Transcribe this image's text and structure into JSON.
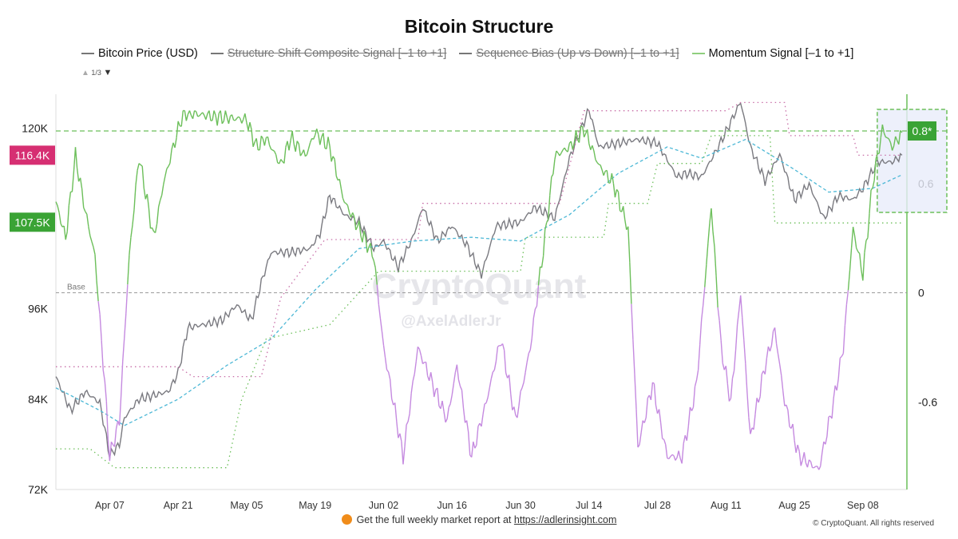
{
  "chart_data": {
    "type": "line",
    "title": "Bitcoin Structure",
    "legend": [
      {
        "name": "Bitcoin Price (USD)",
        "color": "#777777",
        "visible": true
      },
      {
        "name": "Structure Shift Composite Signal [–1 to +1]",
        "color": "#777777",
        "visible": false
      },
      {
        "name": "Sequence Bias (Up vs Down) [–1 to +1]",
        "color": "#777777",
        "visible": false
      },
      {
        "name": "Momentum Signal [–1 to +1]",
        "color": "#6cbf5a",
        "visible": true
      }
    ],
    "legend_page": "1/3",
    "legend_placement": "top",
    "x_ticks": [
      "Apr 07",
      "Apr 21",
      "May 05",
      "May 19",
      "Jun 02",
      "Jun 16",
      "Jun 30",
      "Jul 14",
      "Jul 28",
      "Aug 11",
      "Aug 25",
      "Sep 08"
    ],
    "x_range": [
      "2025-03-27",
      "2025-09-17"
    ],
    "y_left": {
      "ticks": [
        "72K",
        "84K",
        "96K",
        "120K"
      ],
      "tick_values": [
        72000,
        84000,
        96000,
        120000
      ],
      "range": [
        72000,
        124500
      ]
    },
    "y_right": {
      "ticks": [
        "0.6",
        "0",
        "-0.6"
      ],
      "tick_values": [
        0.6,
        0,
        -0.6
      ],
      "range": [
        -1.08,
        1.09
      ]
    },
    "base_label": "Base",
    "markers": {
      "price_current": {
        "label": "116.4K",
        "value": 116400,
        "color": "#d62f72"
      },
      "price_level": {
        "label": "107.5K",
        "value": 107500,
        "color": "#3aa335"
      },
      "momentum_current": {
        "label": "0.8*",
        "value": 0.885,
        "color": "#3aa335"
      }
    },
    "series": [
      {
        "key": "price",
        "axis": "left",
        "color": "#7a7a80",
        "points": [
          [
            "2025-03-27",
            87000
          ],
          [
            "2025-03-30",
            82500
          ],
          [
            "2025-04-02",
            85000
          ],
          [
            "2025-04-05",
            83500
          ],
          [
            "2025-04-07",
            76500
          ],
          [
            "2025-04-09",
            78000
          ],
          [
            "2025-04-10",
            81500
          ],
          [
            "2025-04-13",
            84000
          ],
          [
            "2025-04-16",
            84500
          ],
          [
            "2025-04-19",
            85000
          ],
          [
            "2025-04-21",
            87500
          ],
          [
            "2025-04-23",
            93500
          ],
          [
            "2025-04-27",
            94000
          ],
          [
            "2025-04-30",
            94500
          ],
          [
            "2025-05-03",
            96500
          ],
          [
            "2025-05-06",
            94500
          ],
          [
            "2025-05-08",
            99500
          ],
          [
            "2025-05-10",
            103500
          ],
          [
            "2025-05-14",
            103500
          ],
          [
            "2025-05-18",
            104000
          ],
          [
            "2025-05-20",
            106000
          ],
          [
            "2025-05-22",
            111000
          ],
          [
            "2025-05-25",
            108500
          ],
          [
            "2025-05-28",
            107500
          ],
          [
            "2025-05-31",
            104000
          ],
          [
            "2025-06-02",
            105000
          ],
          [
            "2025-06-05",
            101500
          ],
          [
            "2025-06-08",
            105500
          ],
          [
            "2025-06-10",
            109500
          ],
          [
            "2025-06-13",
            105000
          ],
          [
            "2025-06-16",
            107000
          ],
          [
            "2025-06-19",
            104500
          ],
          [
            "2025-06-22",
            100500
          ],
          [
            "2025-06-25",
            107000
          ],
          [
            "2025-06-30",
            107500
          ],
          [
            "2025-07-03",
            109500
          ],
          [
            "2025-07-07",
            108000
          ],
          [
            "2025-07-10",
            116000
          ],
          [
            "2025-07-14",
            122500
          ],
          [
            "2025-07-16",
            117500
          ],
          [
            "2025-07-20",
            118000
          ],
          [
            "2025-07-24",
            118500
          ],
          [
            "2025-07-28",
            118000
          ],
          [
            "2025-08-01",
            113500
          ],
          [
            "2025-08-03",
            114000
          ],
          [
            "2025-08-06",
            113500
          ],
          [
            "2025-08-09",
            117000
          ],
          [
            "2025-08-11",
            119500
          ],
          [
            "2025-08-14",
            123500
          ],
          [
            "2025-08-16",
            117500
          ],
          [
            "2025-08-19",
            113000
          ],
          [
            "2025-08-22",
            116500
          ],
          [
            "2025-08-25",
            110500
          ],
          [
            "2025-08-28",
            112500
          ],
          [
            "2025-08-31",
            108000
          ],
          [
            "2025-09-03",
            111000
          ],
          [
            "2025-09-06",
            110500
          ],
          [
            "2025-09-08",
            112000
          ],
          [
            "2025-09-11",
            115500
          ],
          [
            "2025-09-14",
            115500
          ],
          [
            "2025-09-16",
            116400
          ]
        ]
      },
      {
        "key": "price_average",
        "axis": "left",
        "color": "#4db8d6",
        "dashed": true,
        "points": [
          [
            "2025-03-27",
            85500
          ],
          [
            "2025-04-05",
            82500
          ],
          [
            "2025-04-10",
            80500
          ],
          [
            "2025-04-21",
            84000
          ],
          [
            "2025-05-01",
            88500
          ],
          [
            "2025-05-10",
            92000
          ],
          [
            "2025-05-19",
            98500
          ],
          [
            "2025-05-28",
            104000
          ],
          [
            "2025-06-08",
            105000
          ],
          [
            "2025-06-20",
            105500
          ],
          [
            "2025-06-30",
            105000
          ],
          [
            "2025-07-10",
            108500
          ],
          [
            "2025-07-20",
            114000
          ],
          [
            "2025-07-30",
            117500
          ],
          [
            "2025-08-06",
            116000
          ],
          [
            "2025-08-15",
            118500
          ],
          [
            "2025-08-25",
            114500
          ],
          [
            "2025-09-01",
            111500
          ],
          [
            "2025-09-10",
            112000
          ],
          [
            "2025-09-16",
            113800
          ]
        ]
      },
      {
        "key": "upper_band",
        "axis": "left",
        "color": "#c86fa8",
        "dotted": true,
        "step": true,
        "points": [
          [
            "2025-03-27",
            88300
          ],
          [
            "2025-04-21",
            88300
          ],
          [
            "2025-04-24",
            87000
          ],
          [
            "2025-05-08",
            87000
          ],
          [
            "2025-05-12",
            97500
          ],
          [
            "2025-05-21",
            105200
          ],
          [
            "2025-06-09",
            105200
          ],
          [
            "2025-06-10",
            110000
          ],
          [
            "2025-07-08",
            110000
          ],
          [
            "2025-07-13",
            122300
          ],
          [
            "2025-08-11",
            122300
          ],
          [
            "2025-08-14",
            123400
          ],
          [
            "2025-08-23",
            123400
          ],
          [
            "2025-08-24",
            119000
          ],
          [
            "2025-09-06",
            119000
          ],
          [
            "2025-09-07",
            116400
          ],
          [
            "2025-09-16",
            116400
          ]
        ]
      },
      {
        "key": "lower_band",
        "axis": "left",
        "color": "#6cbf5a",
        "dotted": true,
        "step": true,
        "points": [
          [
            "2025-03-27",
            77400
          ],
          [
            "2025-04-03",
            77400
          ],
          [
            "2025-04-08",
            74900
          ],
          [
            "2025-05-01",
            74900
          ],
          [
            "2025-05-04",
            84000
          ],
          [
            "2025-05-09",
            92000
          ],
          [
            "2025-05-22",
            93900
          ],
          [
            "2025-06-01",
            101000
          ],
          [
            "2025-06-30",
            101000
          ],
          [
            "2025-07-01",
            105500
          ],
          [
            "2025-07-17",
            105500
          ],
          [
            "2025-07-18",
            110000
          ],
          [
            "2025-07-26",
            110000
          ],
          [
            "2025-07-28",
            115300
          ],
          [
            "2025-08-06",
            115300
          ],
          [
            "2025-08-08",
            119000
          ],
          [
            "2025-08-20",
            119000
          ],
          [
            "2025-08-21",
            107400
          ],
          [
            "2025-09-16",
            107400
          ]
        ]
      },
      {
        "key": "momentum",
        "axis": "right",
        "name": "Momentum Signal [–1 to +1]",
        "color_pos": "#6cbf5a",
        "color_neg": "#c58ae0",
        "points": [
          [
            "2025-03-27",
            0.5
          ],
          [
            "2025-03-29",
            0.3
          ],
          [
            "2025-03-31",
            0.75
          ],
          [
            "2025-04-02",
            0.45
          ],
          [
            "2025-04-04",
            0.2
          ],
          [
            "2025-04-06",
            -0.5
          ],
          [
            "2025-04-07",
            -0.9
          ],
          [
            "2025-04-09",
            -0.7
          ],
          [
            "2025-04-11",
            0.2
          ],
          [
            "2025-04-13",
            0.75
          ],
          [
            "2025-04-16",
            0.3
          ],
          [
            "2025-04-18",
            0.6
          ],
          [
            "2025-04-20",
            0.8
          ],
          [
            "2025-04-22",
            0.99
          ],
          [
            "2025-04-28",
            0.97
          ],
          [
            "2025-05-05",
            0.95
          ],
          [
            "2025-05-07",
            0.8
          ],
          [
            "2025-05-09",
            0.85
          ],
          [
            "2025-05-12",
            0.7
          ],
          [
            "2025-05-14",
            0.85
          ],
          [
            "2025-05-17",
            0.75
          ],
          [
            "2025-05-19",
            0.88
          ],
          [
            "2025-05-22",
            0.8
          ],
          [
            "2025-05-25",
            0.5
          ],
          [
            "2025-05-28",
            0.35
          ],
          [
            "2025-05-31",
            0.2
          ],
          [
            "2025-06-02",
            -0.3
          ],
          [
            "2025-06-04",
            -0.6
          ],
          [
            "2025-06-06",
            -0.9
          ],
          [
            "2025-06-09",
            -0.3
          ],
          [
            "2025-06-12",
            -0.5
          ],
          [
            "2025-06-15",
            -0.7
          ],
          [
            "2025-06-17",
            -0.4
          ],
          [
            "2025-06-20",
            -0.9
          ],
          [
            "2025-06-23",
            -0.6
          ],
          [
            "2025-06-26",
            -0.25
          ],
          [
            "2025-06-29",
            -0.7
          ],
          [
            "2025-07-02",
            -0.3
          ],
          [
            "2025-07-05",
            0.3
          ],
          [
            "2025-07-07",
            0.75
          ],
          [
            "2025-07-10",
            0.8
          ],
          [
            "2025-07-13",
            0.9
          ],
          [
            "2025-07-16",
            0.7
          ],
          [
            "2025-07-19",
            0.6
          ],
          [
            "2025-07-22",
            0.35
          ],
          [
            "2025-07-24",
            -0.85
          ],
          [
            "2025-07-27",
            -0.5
          ],
          [
            "2025-07-30",
            -0.9
          ],
          [
            "2025-08-02",
            -0.9
          ],
          [
            "2025-08-05",
            -0.5
          ],
          [
            "2025-08-08",
            0.48
          ],
          [
            "2025-08-10",
            -0.3
          ],
          [
            "2025-08-12",
            -0.6
          ],
          [
            "2025-08-14",
            0.0
          ],
          [
            "2025-08-16",
            -0.8
          ],
          [
            "2025-08-19",
            -0.4
          ],
          [
            "2025-08-21",
            -0.2
          ],
          [
            "2025-08-23",
            -0.6
          ],
          [
            "2025-08-26",
            -0.9
          ],
          [
            "2025-08-30",
            -0.97
          ],
          [
            "2025-09-02",
            -0.6
          ],
          [
            "2025-09-04",
            -0.3
          ],
          [
            "2025-09-06",
            0.35
          ],
          [
            "2025-09-08",
            0.1
          ],
          [
            "2025-09-10",
            0.6
          ],
          [
            "2025-09-12",
            0.9
          ],
          [
            "2025-09-14",
            0.8
          ],
          [
            "2025-09-16",
            0.88
          ]
        ]
      }
    ],
    "watermark": [
      "CryptoQuant",
      "@AxelAdlerJr"
    ]
  },
  "footer": {
    "text": "Get the full weekly market report at",
    "link": "https://adlerinsight.com",
    "copyright": "© CryptoQuant. All rights reserved"
  }
}
